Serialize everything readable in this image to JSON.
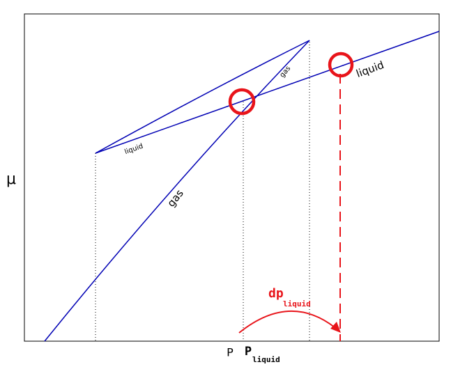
{
  "axis": {
    "y_label": "μ",
    "x_label": "P"
  },
  "curves": {
    "gas_label": "gas",
    "gas_small_label": "gas",
    "liquid_label": "liquid",
    "liquid_small_label": "liquid"
  },
  "markers": {
    "p_liquid": {
      "symbol": "P",
      "subscript": "liquid"
    },
    "dp_liquid": {
      "symbol": "dp",
      "subscript": "liquid"
    }
  }
}
